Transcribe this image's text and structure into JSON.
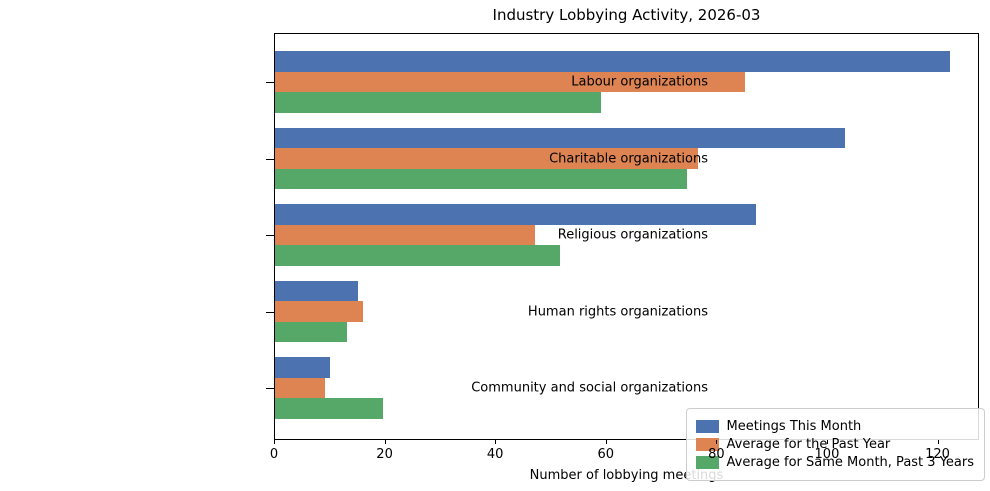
{
  "title": "Industry Lobbying Activity, 2026-03",
  "chart_data": {
    "type": "bar",
    "orientation": "horizontal",
    "title": "Industry Lobbying Activity, 2026-03",
    "xlabel": "Number of lobbying meetings",
    "ylabel": "",
    "categories": [
      "Labour organizations",
      "Charitable organizations",
      "Religious organizations",
      "Human rights organizations",
      "Community and social organizations"
    ],
    "series": [
      {
        "name": "Meetings This Month",
        "color": "#4C72B0",
        "values": [
          122,
          103,
          87,
          15,
          10
        ]
      },
      {
        "name": "Average for the Past Year",
        "color": "#DD8452",
        "values": [
          85,
          76.5,
          47,
          16,
          9
        ]
      },
      {
        "name": "Average for Same Month, Past 3 Years",
        "color": "#55A868",
        "values": [
          59,
          74.5,
          51.5,
          13,
          19.5
        ]
      }
    ],
    "xlim": [
      0,
      127.5
    ],
    "xticks": [
      0,
      20,
      40,
      60,
      80,
      100,
      120
    ],
    "grid": false,
    "legend_position": "lower right"
  }
}
